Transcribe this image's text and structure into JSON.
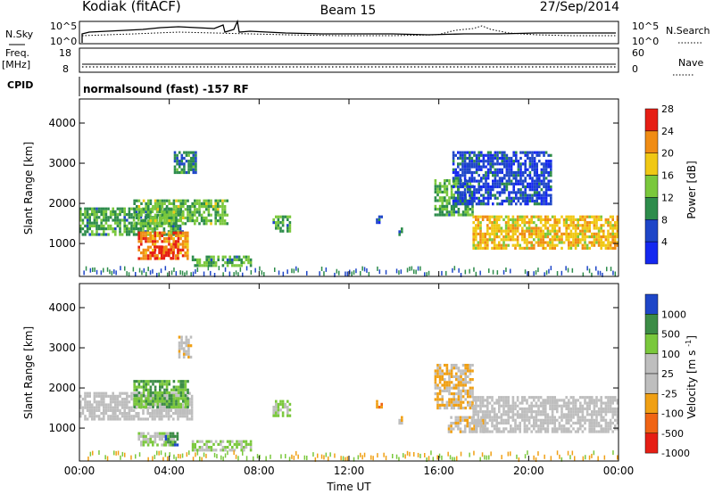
{
  "header": {
    "radar": "Kodiak (fitACF)",
    "beam": "Beam 15",
    "date": "27/Sep/2014"
  },
  "status_panels": {
    "nsky": {
      "label": "N.Sky",
      "ticks": [
        "10^5",
        "10^0"
      ]
    },
    "nsearch": {
      "label": "N.Search",
      "ticks": [
        "10^5",
        "10^0"
      ]
    },
    "freq": {
      "label": "Freq.",
      "unit": "[MHz]",
      "ticks": [
        "18",
        "8"
      ]
    },
    "nave": {
      "label": "Nave",
      "ticks": [
        "60",
        "0"
      ]
    },
    "cpid": {
      "label": "CPID",
      "text": "normalsound (fast) -157 RF"
    }
  },
  "chart_data": [
    {
      "type": "heatmap",
      "title": "",
      "xlabel": "",
      "ylabel": "Slant Range [km]",
      "xlim": [
        "00:00",
        "24:00"
      ],
      "ylim": [
        180,
        4600
      ],
      "yticks": [
        1000,
        2000,
        3000,
        4000
      ],
      "colorbar": {
        "label": "Power [dB]",
        "ticks": [
          "4",
          "8",
          "12",
          "16",
          "20",
          "24",
          "28"
        ],
        "range": [
          0,
          30
        ],
        "colors": [
          "#1428f0",
          "#1e46c8",
          "#2d8c4b",
          "#7ac83c",
          "#f0c814",
          "#f08c14",
          "#e61e14"
        ]
      },
      "regions": [
        {
          "t0": 0.0,
          "t1": 4.6,
          "r0": 1200,
          "r1": 1900,
          "v": 12
        },
        {
          "t0": 2.4,
          "t1": 6.6,
          "r0": 1500,
          "r1": 2100,
          "v": 14
        },
        {
          "t0": 2.6,
          "t1": 4.8,
          "r0": 600,
          "r1": 1300,
          "v": 24
        },
        {
          "t0": 3.2,
          "t1": 4.4,
          "r0": 650,
          "r1": 950,
          "v": 28
        },
        {
          "t0": 4.2,
          "t1": 5.2,
          "r0": 2800,
          "r1": 3300,
          "v": 10
        },
        {
          "t0": 5.0,
          "t1": 7.6,
          "r0": 450,
          "r1": 700,
          "v": 12
        },
        {
          "t0": 8.6,
          "t1": 9.4,
          "r0": 1300,
          "r1": 1700,
          "v": 12
        },
        {
          "t0": 13.2,
          "t1": 13.5,
          "r0": 1500,
          "r1": 1700,
          "v": 6
        },
        {
          "t0": 14.2,
          "t1": 14.4,
          "r0": 1200,
          "r1": 1400,
          "v": 8
        },
        {
          "t0": 15.8,
          "t1": 17.5,
          "r0": 1700,
          "r1": 2600,
          "v": 12
        },
        {
          "t0": 16.6,
          "t1": 21.0,
          "r0": 2000,
          "r1": 3300,
          "v": 6
        },
        {
          "t0": 17.5,
          "t1": 24.0,
          "r0": 900,
          "r1": 1700,
          "v": 20
        }
      ]
    },
    {
      "type": "heatmap",
      "title": "",
      "xlabel": "Time UT",
      "ylabel": "Slant Range [km]",
      "xlim": [
        "00:00",
        "24:00"
      ],
      "ylim": [
        180,
        4600
      ],
      "xticks": [
        "00:00",
        "04:00",
        "08:00",
        "12:00",
        "16:00",
        "20:00",
        "00:00"
      ],
      "yticks": [
        1000,
        2000,
        3000,
        4000
      ],
      "colorbar": {
        "label": "Velocity [m s^-1]",
        "ticks": [
          "1000",
          "500",
          "100",
          "25",
          "-25",
          "-100",
          "-500",
          "-1000"
        ],
        "range": [
          -1200,
          1200
        ],
        "colors": [
          "#1e46c8",
          "#3c8c46",
          "#7ac83c",
          "#bebebe",
          "#bebebe",
          "#f0a014",
          "#f06414",
          "#e61e14"
        ]
      },
      "regions": [
        {
          "t0": 0.0,
          "t1": 5.0,
          "r0": 1200,
          "r1": 1900,
          "v": 0
        },
        {
          "t0": 2.4,
          "t1": 4.8,
          "r0": 1500,
          "r1": 2200,
          "v": 600
        },
        {
          "t0": 2.6,
          "t1": 4.2,
          "r0": 600,
          "r1": 900,
          "v": 150
        },
        {
          "t0": 3.8,
          "t1": 4.4,
          "r0": 600,
          "r1": 900,
          "v": 800
        },
        {
          "t0": 4.4,
          "t1": 5.0,
          "r0": 2800,
          "r1": 3300,
          "v": -150
        },
        {
          "t0": 5.0,
          "t1": 7.6,
          "r0": 450,
          "r1": 700,
          "v": 300
        },
        {
          "t0": 8.6,
          "t1": 9.4,
          "r0": 1300,
          "r1": 1700,
          "v": 300
        },
        {
          "t0": 13.2,
          "t1": 13.5,
          "r0": 1500,
          "r1": 1700,
          "v": -600
        },
        {
          "t0": 14.2,
          "t1": 14.4,
          "r0": 1100,
          "r1": 1300,
          "v": -150
        },
        {
          "t0": 15.8,
          "t1": 17.5,
          "r0": 1500,
          "r1": 2600,
          "v": -300
        },
        {
          "t0": 16.4,
          "t1": 18.0,
          "r0": 900,
          "r1": 1300,
          "v": -150
        },
        {
          "t0": 17.5,
          "t1": 24.0,
          "r0": 900,
          "r1": 1800,
          "v": 0
        }
      ]
    }
  ]
}
